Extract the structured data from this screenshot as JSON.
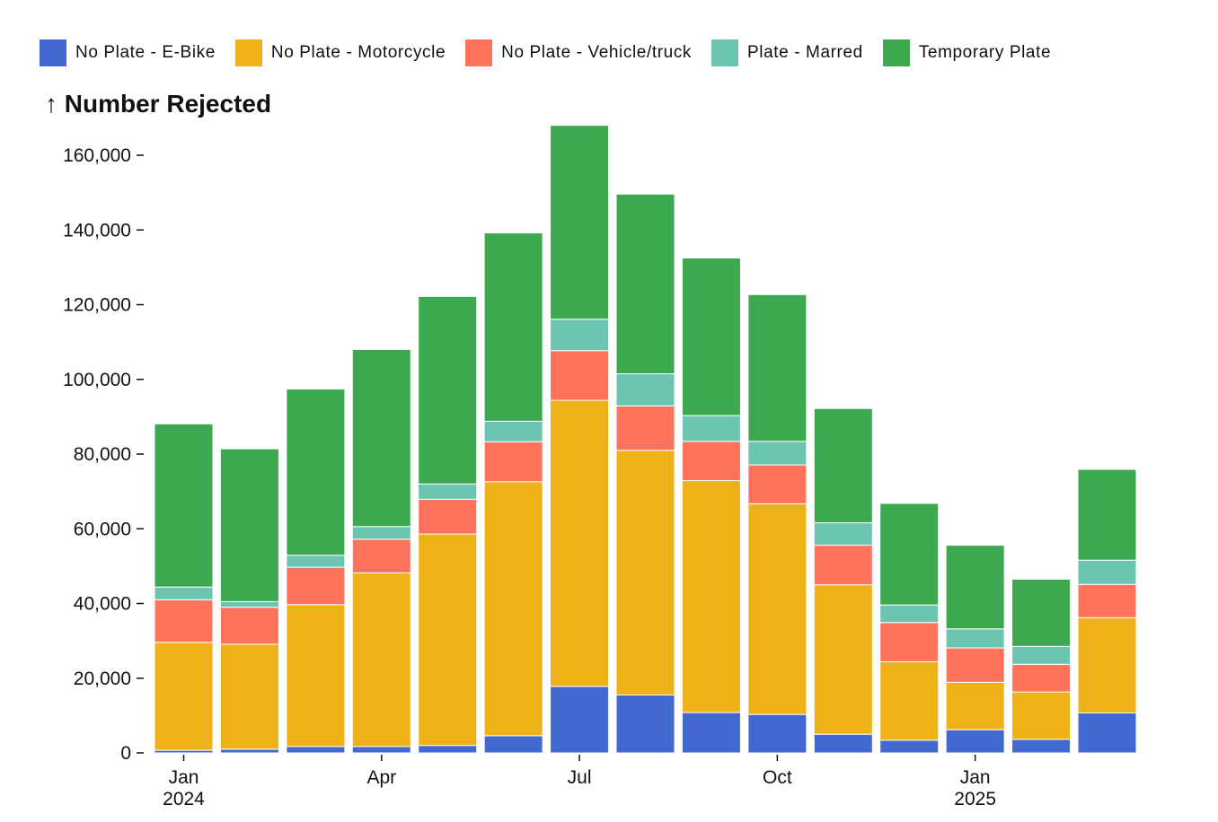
{
  "chart_data": {
    "type": "bar",
    "stacked": true,
    "ylabel": "↑ Number Rejected",
    "ylim": [
      0,
      168000
    ],
    "y_ticks": [
      0,
      20000,
      40000,
      60000,
      80000,
      100000,
      120000,
      140000,
      160000
    ],
    "y_tick_labels": [
      "0",
      "20,000",
      "40,000",
      "60,000",
      "80,000",
      "100,000",
      "120,000",
      "140,000",
      "160,000"
    ],
    "categories": [
      "2024-01",
      "2024-02",
      "2024-03",
      "2024-04",
      "2024-05",
      "2024-06",
      "2024-07",
      "2024-08",
      "2024-09",
      "2024-10",
      "2024-11",
      "2024-12",
      "2025-01",
      "2025-02",
      "2025-03"
    ],
    "x_tick_labels": [
      {
        "category": "2024-01",
        "label": "Jan",
        "sublabel": "2024"
      },
      {
        "category": "2024-04",
        "label": "Apr",
        "sublabel": ""
      },
      {
        "category": "2024-07",
        "label": "Jul",
        "sublabel": ""
      },
      {
        "category": "2024-10",
        "label": "Oct",
        "sublabel": ""
      },
      {
        "category": "2025-01",
        "label": "Jan",
        "sublabel": "2025"
      }
    ],
    "legend_position": "top-left",
    "grid": false,
    "series": [
      {
        "name": "No Plate - E-Bike",
        "color": "#4269d0",
        "values": [
          700,
          1000,
          1700,
          1700,
          2000,
          4600,
          17800,
          15500,
          10800,
          10300,
          5000,
          3400,
          6200,
          3600,
          10700
        ]
      },
      {
        "name": "No Plate - Motorcycle",
        "color": "#efb118",
        "values": [
          28900,
          28100,
          38000,
          46500,
          56600,
          68000,
          76600,
          65500,
          62100,
          56400,
          40000,
          21000,
          12700,
          12700,
          25500
        ]
      },
      {
        "name": "No Plate - Vehicle/truck",
        "color": "#ff725c",
        "values": [
          11400,
          9900,
          10000,
          9000,
          9300,
          10700,
          13300,
          11900,
          10500,
          10400,
          10600,
          10500,
          9200,
          7400,
          8900
        ]
      },
      {
        "name": "Plate - Marred",
        "color": "#6cc5b0",
        "values": [
          3400,
          1500,
          3200,
          3400,
          4100,
          5500,
          8400,
          8600,
          6900,
          6300,
          6000,
          4700,
          5100,
          4800,
          6500
        ]
      },
      {
        "name": "Temporary Plate",
        "color": "#3ca951",
        "values": [
          43700,
          40900,
          44500,
          47400,
          50200,
          50400,
          51900,
          48100,
          42200,
          39300,
          30600,
          27200,
          22400,
          18000,
          24300
        ]
      }
    ]
  }
}
